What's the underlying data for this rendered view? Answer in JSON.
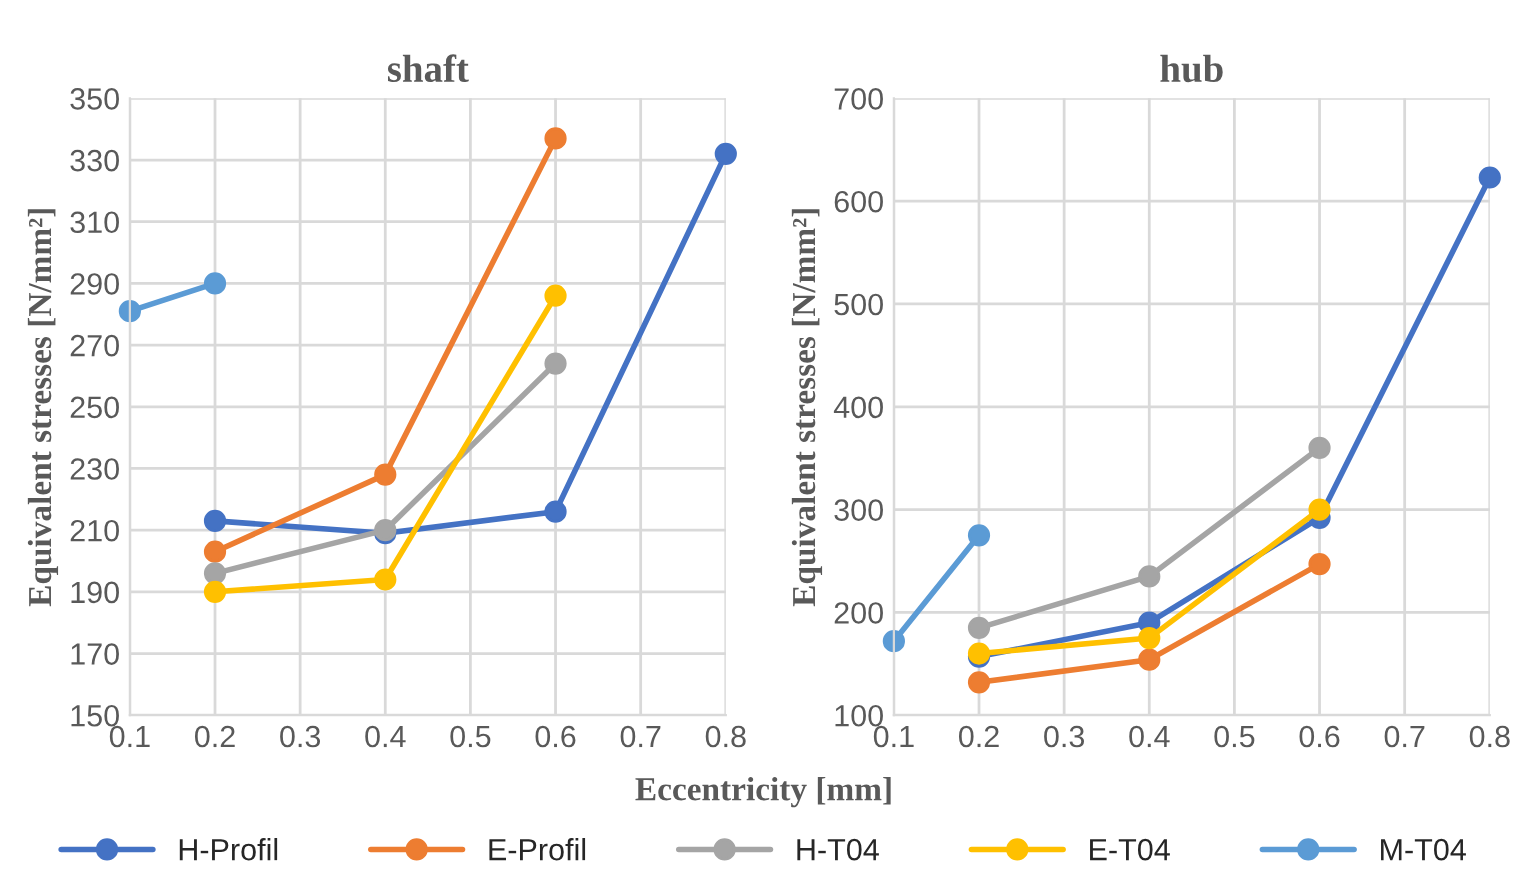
{
  "chart_data": [
    {
      "type": "line",
      "title": "shaft",
      "ylabel": "Equivalent stresses [N/mm²]",
      "xlabel": "Eccentricity [mm]",
      "xlim": [
        0.1,
        0.8
      ],
      "xticks": [
        0.1,
        0.2,
        0.3,
        0.4,
        0.5,
        0.6,
        0.7,
        0.8
      ],
      "ylim": [
        150,
        350
      ],
      "yticks": [
        150,
        170,
        190,
        210,
        230,
        250,
        270,
        290,
        310,
        330,
        350
      ],
      "grid": true,
      "marker": "circle",
      "line_style": "solid",
      "legend": "bottom",
      "series": [
        {
          "name": "H-Profil",
          "color": "#4472c4",
          "x": [
            0.2,
            0.4,
            0.6,
            0.8
          ],
          "values": [
            213,
            209,
            216,
            332
          ]
        },
        {
          "name": "E-Profil",
          "color": "#ed7d31",
          "x": [
            0.2,
            0.4,
            0.6
          ],
          "values": [
            203,
            228,
            337
          ]
        },
        {
          "name": "H-T04",
          "color": "#a5a5a5",
          "x": [
            0.2,
            0.4,
            0.6
          ],
          "values": [
            196,
            210,
            264
          ]
        },
        {
          "name": "E-T04",
          "color": "#ffc000",
          "x": [
            0.2,
            0.4,
            0.6
          ],
          "values": [
            190,
            194,
            286
          ]
        },
        {
          "name": "M-T04",
          "color": "#5b9bd5",
          "x": [
            0.1,
            0.2
          ],
          "values": [
            281,
            290
          ]
        }
      ]
    },
    {
      "type": "line",
      "title": "hub",
      "ylabel": "Equivalent stresses [N/mm²]",
      "xlim": [
        0.1,
        0.8
      ],
      "xticks": [
        0.1,
        0.2,
        0.3,
        0.4,
        0.5,
        0.6,
        0.7,
        0.8
      ],
      "ylim": [
        100,
        700
      ],
      "yticks": [
        100,
        200,
        300,
        400,
        500,
        600,
        700
      ],
      "grid": true,
      "marker": "circle",
      "line_style": "solid",
      "legend": "bottom",
      "series": [
        {
          "name": "H-Profil",
          "color": "#4472c4",
          "x": [
            0.2,
            0.4,
            0.6,
            0.8
          ],
          "values": [
            157,
            190,
            292,
            623
          ]
        },
        {
          "name": "E-Profil",
          "color": "#ed7d31",
          "x": [
            0.2,
            0.4,
            0.6
          ],
          "values": [
            132,
            154,
            247
          ]
        },
        {
          "name": "H-T04",
          "color": "#a5a5a5",
          "x": [
            0.2,
            0.4,
            0.6
          ],
          "values": [
            185,
            235,
            360
          ]
        },
        {
          "name": "E-T04",
          "color": "#ffc000",
          "x": [
            0.2,
            0.4,
            0.6
          ],
          "values": [
            160,
            175,
            300
          ]
        },
        {
          "name": "M-T04",
          "color": "#5b9bd5",
          "x": [
            0.1,
            0.2
          ],
          "values": [
            172,
            275
          ]
        }
      ]
    }
  ]
}
